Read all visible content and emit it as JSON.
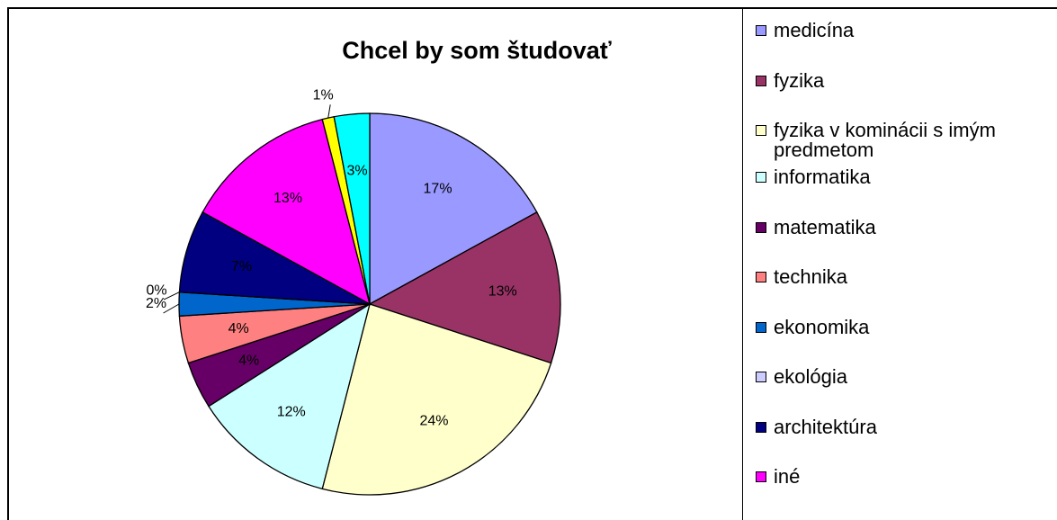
{
  "chart_data": {
    "type": "pie",
    "title": "Chcel by som študovať",
    "categories": [
      "medicína",
      "fyzika",
      "fyzika v kominácii s imým predmetom",
      "informatika",
      "matematika",
      "technika",
      "ekonomika",
      "ekológia",
      "architektúra",
      "iné",
      null,
      null
    ],
    "values": [
      17,
      13,
      24,
      12,
      4,
      4,
      2,
      0,
      7,
      13,
      1,
      3
    ],
    "value_labels": [
      "17%",
      "13%",
      "24%",
      "12%",
      "4%",
      "4%",
      "2%",
      "0%",
      "7%",
      "13%",
      "1%",
      "3%"
    ],
    "colors": [
      "#9999ff",
      "#993366",
      "#ffffcc",
      "#ccffff",
      "#660066",
      "#ff8080",
      "#0066cc",
      "#ccccff",
      "#000080",
      "#ff00ff",
      "#ffff00",
      "#00ffff"
    ],
    "legend": "right"
  }
}
